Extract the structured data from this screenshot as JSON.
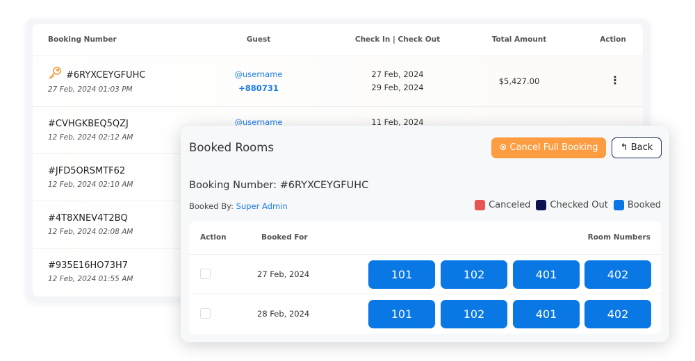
{
  "table": {
    "headers": [
      "Booking Number",
      "Guest",
      "Check In | Check Out",
      "Total Amount",
      "Action"
    ],
    "rows": [
      {
        "number": "#6RYXCEYGFUHC",
        "date": "27 Feb, 2024 01:03 PM",
        "guest": "@username",
        "phone": "+880731",
        "check_in": "27 Feb, 2024",
        "check_out": "29 Feb, 2024",
        "amount": "$5,427.00",
        "icon": "key-icon",
        "action_icon": "more-vertical-icon"
      },
      {
        "number": "#CVHGKBEQ5QZJ",
        "date": "12 Feb, 2024 02:12 AM",
        "guest": "@username",
        "check_in": "11 Feb, 2024"
      },
      {
        "number": "#JFD5ORSMTF62",
        "date": "12 Feb, 2024 02:10 AM"
      },
      {
        "number": "#4T8XNEV4T2BQ",
        "date": "12 Feb, 2024 02:08 AM"
      },
      {
        "number": "#935E16HO73H7",
        "date": "12 Feb, 2024 01:55 AM"
      }
    ]
  },
  "modal": {
    "title": "Booked Rooms",
    "cancel_label": "Cancel Full Booking",
    "back_label": "Back",
    "booking_number": "Booking Number: #6RYXCEYGFUHC",
    "booked_by_label": "Booked By:",
    "booked_by": "Super Admin",
    "legend": [
      {
        "label": "Canceled",
        "color": "#e85555"
      },
      {
        "label": "Checked Out",
        "color": "#0b1450"
      },
      {
        "label": "Booked",
        "color": "#0a78e4"
      }
    ],
    "headers": [
      "Action",
      "Booked For",
      "Room Numbers"
    ],
    "rows": [
      {
        "date": "27 Feb, 2024",
        "rooms": [
          "101",
          "102",
          "401",
          "402"
        ]
      },
      {
        "date": "28 Feb, 2024",
        "rooms": [
          "101",
          "102",
          "401",
          "402"
        ]
      }
    ]
  }
}
